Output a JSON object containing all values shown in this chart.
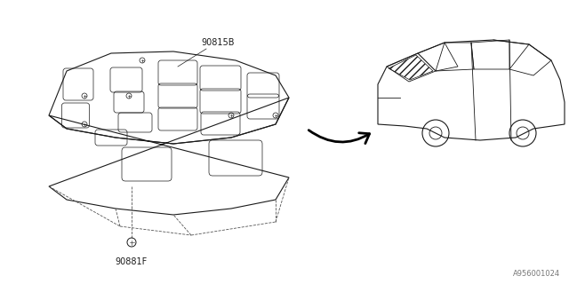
{
  "bg_color": "#ffffff",
  "line_color": "#1a1a1a",
  "dashed_color": "#555555",
  "part_label_1": "90815B",
  "part_label_2": "90881F",
  "diagram_id": "A956001024",
  "arrow_color": "#000000"
}
